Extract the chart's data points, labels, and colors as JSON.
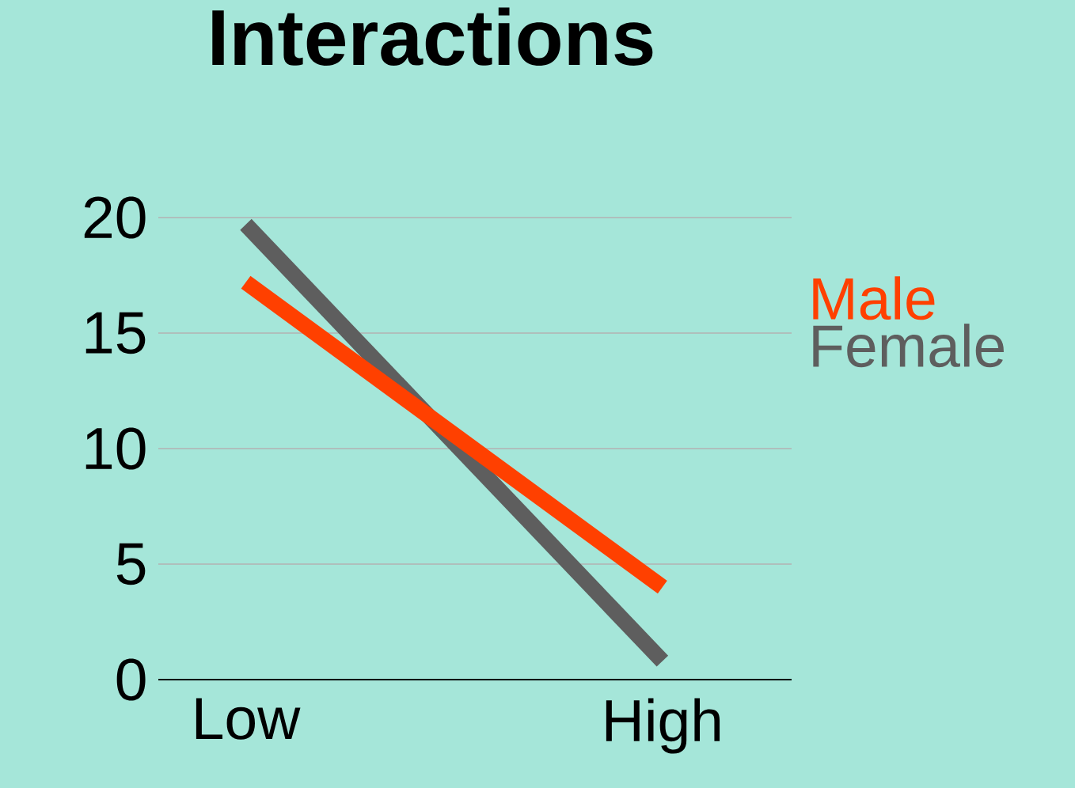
{
  "chart_data": {
    "type": "line",
    "title": "Interactions",
    "categories": [
      "Low",
      "High"
    ],
    "ylim": [
      0,
      20
    ],
    "yticks": [
      0,
      5,
      10,
      15,
      20
    ],
    "grid": "y",
    "legend": "right",
    "line_style": "solid",
    "marker": "none",
    "series": [
      {
        "name": "Male",
        "color": "#ff4000",
        "values": [
          17.2,
          4.0
        ]
      },
      {
        "name": "Female",
        "color": "#5e5e5e",
        "values": [
          19.7,
          0.8
        ]
      }
    ]
  }
}
